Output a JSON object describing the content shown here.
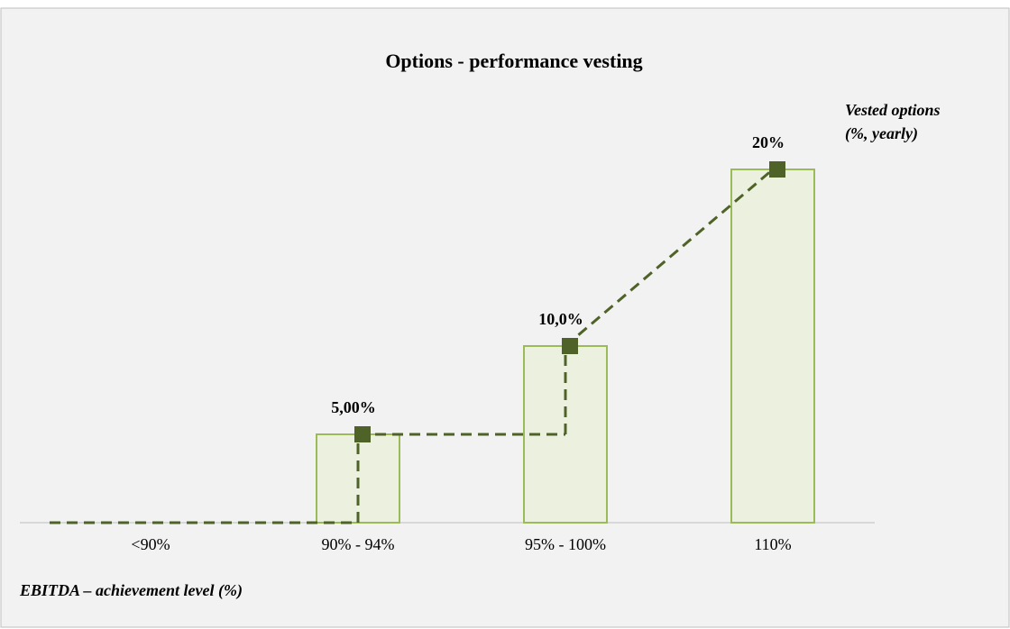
{
  "chart_data": {
    "type": "bar",
    "title": "Options - performance vesting",
    "y_label": [
      "Vested options",
      "(%, yearly)"
    ],
    "x_label": "EBITDA – achievement level (%)",
    "categories": [
      "<90%",
      "90% - 94%",
      "95% - 100%",
      "110%"
    ],
    "values": [
      0,
      5,
      10,
      20
    ],
    "value_labels": [
      null,
      "5,00%",
      "10,0%",
      "20%"
    ],
    "color": "#ebf1de",
    "edge_color": "#9bbb59",
    "line_color": "#4f6228",
    "ylim": [
      0,
      20
    ],
    "grid": false
  }
}
